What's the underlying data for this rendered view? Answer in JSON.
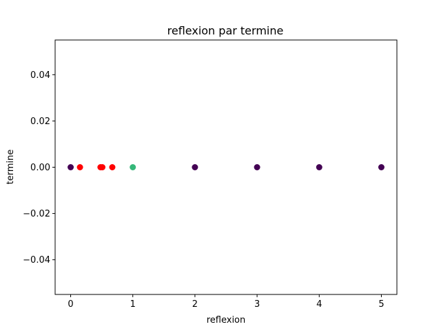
{
  "chart_data": {
    "type": "scatter",
    "title": "reflexion par termine",
    "xlabel": "reflexion",
    "ylabel": "termine",
    "xlim": [
      -0.25,
      5.25
    ],
    "ylim": [
      -0.055,
      0.055
    ],
    "x_ticks": [
      0,
      1,
      2,
      3,
      4,
      5
    ],
    "x_tick_labels": [
      "0",
      "1",
      "2",
      "3",
      "4",
      "5"
    ],
    "y_ticks": [
      -0.04,
      -0.02,
      0.0,
      0.02,
      0.04
    ],
    "y_tick_labels": [
      "−0.04",
      "−0.02",
      "0.00",
      "0.02",
      "0.04"
    ],
    "grid": false,
    "legend": "none",
    "points": [
      {
        "x": 0.0,
        "y": 0.0,
        "color": "#440154"
      },
      {
        "x": 0.15,
        "y": 0.0,
        "color": "#ff0000"
      },
      {
        "x": 0.48,
        "y": 0.0,
        "color": "#ff0000"
      },
      {
        "x": 0.51,
        "y": 0.0,
        "color": "#ff0000"
      },
      {
        "x": 0.67,
        "y": 0.0,
        "color": "#ff0000"
      },
      {
        "x": 1.0,
        "y": 0.0,
        "color": "#35b779"
      },
      {
        "x": 2.0,
        "y": 0.0,
        "color": "#440154"
      },
      {
        "x": 3.0,
        "y": 0.0,
        "color": "#440154"
      },
      {
        "x": 4.0,
        "y": 0.0,
        "color": "#440154"
      },
      {
        "x": 5.0,
        "y": 0.0,
        "color": "#440154"
      }
    ]
  }
}
